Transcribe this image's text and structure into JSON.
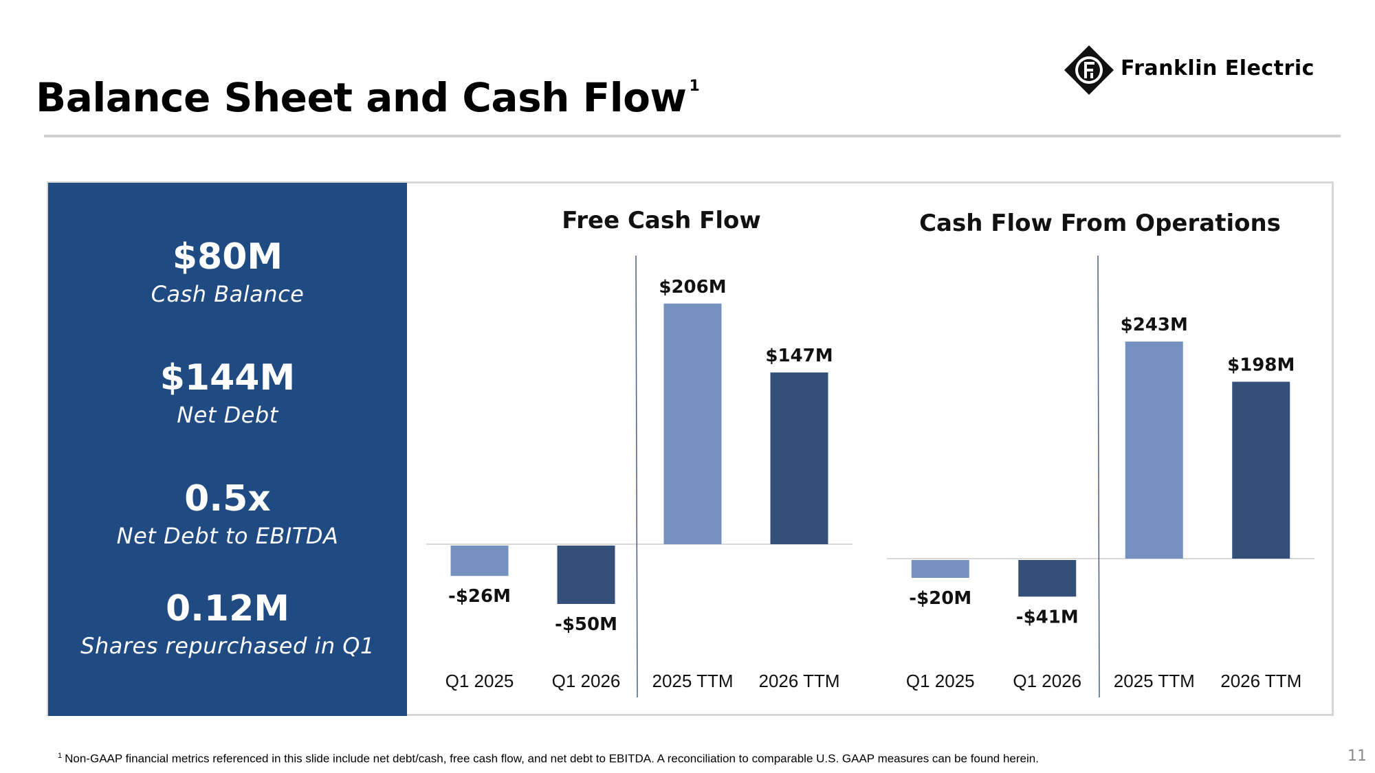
{
  "slide": {
    "title": "Balance Sheet and Cash Flow",
    "title_superscript": "1",
    "logo_text": "Franklin Electric",
    "page_number": "11",
    "footnote_marker": "1",
    "footnote": "Non-GAAP financial metrics referenced in this slide include net debt/cash, free cash flow, and net debt to EBITDA. A reconciliation to comparable U.S. GAAP measures can be found herein."
  },
  "kpis": [
    {
      "value": "$80M",
      "label": "Cash Balance"
    },
    {
      "value": "$144M",
      "label": "Net Debt"
    },
    {
      "value": "0.5x",
      "label": "Net Debt to EBITDA"
    },
    {
      "value": "0.12M",
      "label": "Shares repurchased in Q1"
    }
  ],
  "colors": {
    "kpi_background": "#1f4a82",
    "bar_light": "#7491c0",
    "bar_dark": "#344f78",
    "axis": "#d9d9d9",
    "divider": "#4a5f80"
  },
  "chart_data": [
    {
      "type": "bar",
      "title": "Free Cash Flow",
      "categories": [
        "Q1 2025",
        "Q1 2026",
        "2025 TTM",
        "2026 TTM"
      ],
      "values": [
        -26,
        -50,
        206,
        147
      ],
      "data_labels": [
        "-$26M",
        "-$50M",
        "$206M",
        "$147M"
      ],
      "bar_colors": [
        "light",
        "dark",
        "light",
        "dark"
      ],
      "unit": "$M",
      "ylim": [
        -60,
        230
      ],
      "grid": false,
      "legend": "none"
    },
    {
      "type": "bar",
      "title": "Cash Flow From Operations",
      "categories": [
        "Q1 2025",
        "Q1 2026",
        "2025 TTM",
        "2026 TTM"
      ],
      "values": [
        -20,
        -41,
        243,
        198
      ],
      "data_labels": [
        "-$20M",
        "-$41M",
        "$243M",
        "$198M"
      ],
      "bar_colors": [
        "light",
        "dark",
        "light",
        "dark"
      ],
      "unit": "$M",
      "ylim": [
        -50,
        260
      ],
      "grid": false,
      "legend": "none"
    }
  ]
}
